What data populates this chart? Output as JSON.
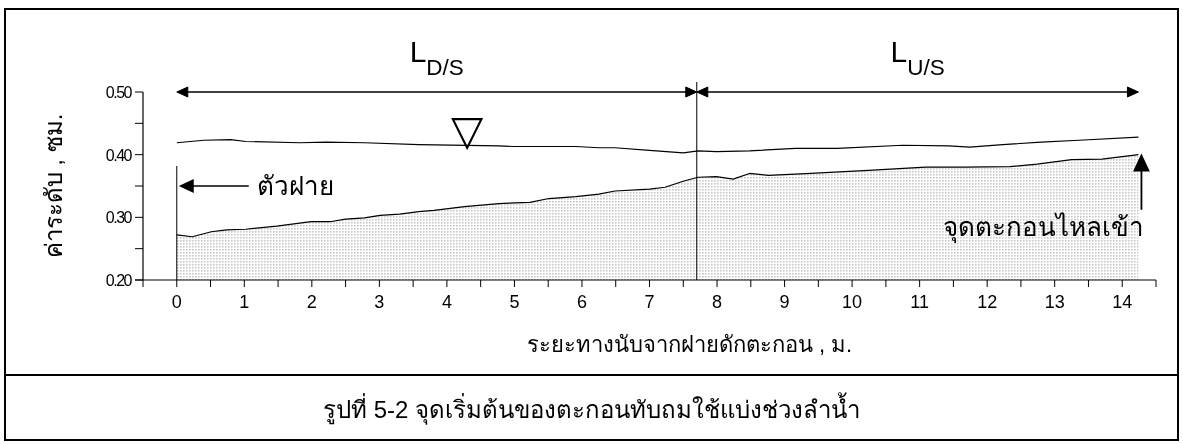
{
  "chart_data": {
    "type": "area",
    "title": "รูปที่ 5-2 จุดเริ่มต้นของตะกอนทับถมใช้แบ่งช่วงลำน้ำ",
    "xlabel": "ระยะทางนับจากฝายดักตะกอน , ม.",
    "ylabel": "ค่าระดับ , ซม.",
    "xlim": [
      -0.5,
      14.5
    ],
    "xticks": [
      {
        "value": -0.5,
        "label": null
      },
      0,
      {
        "value": 0.5,
        "label": null
      },
      1,
      {
        "value": 1.5,
        "label": null
      },
      2,
      {
        "value": 2.5,
        "label": null
      },
      3,
      {
        "value": 3.5,
        "label": null
      },
      4,
      {
        "value": 4.5,
        "label": null
      },
      5,
      {
        "value": 5.5,
        "label": null
      },
      6,
      {
        "value": 6.5,
        "label": null
      },
      7,
      {
        "value": 7.5,
        "label": null
      },
      8,
      {
        "value": 8.5,
        "label": null
      },
      9,
      {
        "value": 9.5,
        "label": null
      },
      10,
      {
        "value": 10.5,
        "label": null
      },
      11,
      {
        "value": 11.5,
        "label": null
      },
      12,
      {
        "value": 12.5,
        "label": null
      },
      13,
      {
        "value": 13.5,
        "label": null
      },
      14,
      {
        "value": 14.5,
        "label": null
      }
    ],
    "ylim": [
      0.2,
      0.5
    ],
    "yticks": [
      {
        "value": 0.2,
        "label": "0.20"
      },
      {
        "value": 0.25,
        "label": null
      },
      {
        "value": 0.3,
        "label": "0.30"
      },
      {
        "value": 0.35,
        "label": null
      },
      {
        "value": 0.4,
        "label": "0.40"
      },
      {
        "value": 0.45,
        "label": null
      },
      {
        "value": 0.5,
        "label": "0.50"
      }
    ],
    "grid": false,
    "series": [
      {
        "color": "#c8c8c8",
        "x": [
          0,
          0.23,
          0.51,
          0.74,
          1.02,
          1.48,
          1.99,
          2.27,
          2.5,
          2.78,
          3.01,
          3.3,
          3.58,
          3.81,
          4.26,
          4.77,
          5.23,
          5.51,
          5.91,
          6.25,
          6.49,
          7.0,
          7.23,
          7.51,
          7.72,
          7.99,
          8.24,
          8.48,
          8.76,
          9.39,
          10.24,
          11.09,
          11.66,
          12.34,
          12.74,
          13.25,
          13.7,
          14.24
        ],
        "values": [
          0.272,
          0.269,
          0.277,
          0.28,
          0.281,
          0.286,
          0.293,
          0.293,
          0.297,
          0.299,
          0.303,
          0.305,
          0.309,
          0.311,
          0.317,
          0.322,
          0.324,
          0.33,
          0.333,
          0.337,
          0.342,
          0.345,
          0.348,
          0.358,
          0.364,
          0.365,
          0.361,
          0.37,
          0.367,
          0.37,
          0.375,
          0.38,
          0.38,
          0.381,
          0.385,
          0.392,
          0.393,
          0.4
        ]
      },
      {
        "type": "line",
        "color": "#000000",
        "x": [
          0,
          0.4,
          0.8,
          1.02,
          1.82,
          2.22,
          2.78,
          3.58,
          4.77,
          5.0,
          5.91,
          6.25,
          6.49,
          7.0,
          7.5,
          7.72,
          7.99,
          8.48,
          9.16,
          9.78,
          10.75,
          11.43,
          11.74,
          12.23,
          12.8,
          13.36,
          14.24
        ],
        "values": [
          0.419,
          0.423,
          0.424,
          0.421,
          0.419,
          0.42,
          0.419,
          0.416,
          0.414,
          0.413,
          0.413,
          0.411,
          0.411,
          0.407,
          0.403,
          0.406,
          0.405,
          0.406,
          0.41,
          0.41,
          0.415,
          0.414,
          0.412,
          0.416,
          0.42,
          0.423,
          0.428
        ]
      }
    ],
    "ref_lines": [
      {
        "axis": "x",
        "value": 0,
        "label": null
      },
      {
        "axis": "x",
        "value": 7.7,
        "label": null
      }
    ],
    "annotations": [
      {
        "text": "▽",
        "x": 4.3,
        "y": 0.418
      },
      "L$_{D/S}$",
      "L$_{U/S}$",
      "ตัวฝาย",
      {
        "text": "จุดตะกอนไหลเข้า",
        "x": 14.24,
        "y": 0.4
      }
    ]
  }
}
